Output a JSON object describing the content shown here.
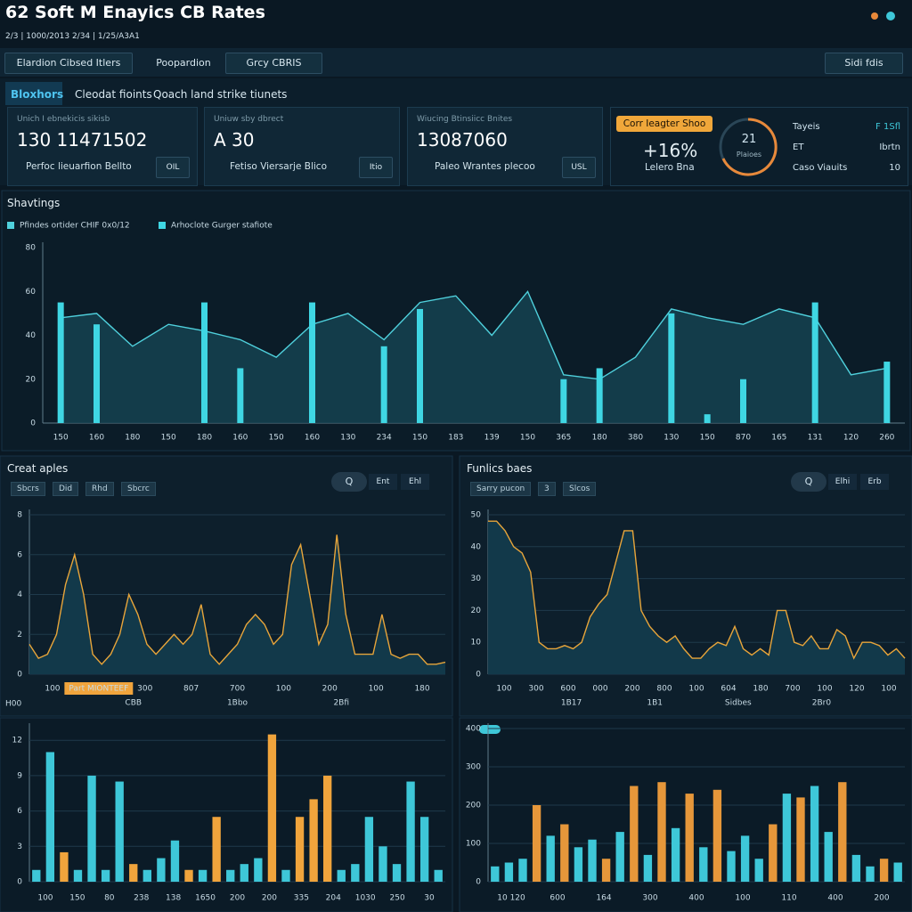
{
  "header": {
    "title": "62 Soft M Enayics CB Rates",
    "subtitle": "2/3  |  1000/2013 2/34  |  1/25/A3A1"
  },
  "toolbar": [
    "Elardion Cibsed Itlers",
    "Poopardion",
    "Grcy CBRIS",
    "Sidi fdis"
  ],
  "tabs": [
    "Bloxhors",
    "Cleodat fioints",
    "Qoach land strike tiunets"
  ],
  "cards": [
    {
      "label": "Unich I ebnekicis sikisb",
      "value": "130 11471502",
      "foot": "Perfoc lieuarfion Bellto",
      "button": "OIL"
    },
    {
      "label": "Uniuw sby dbrect",
      "value": "A 30",
      "foot": "Fetiso Viersarje Blico",
      "button": "Itio"
    },
    {
      "label": "Wiucing Btinsiicc Bnites",
      "value": "13087060",
      "foot": "Paleo Wrantes plecoo",
      "button": "USL"
    }
  ],
  "summary": {
    "badge": "Corr Ieagter Shoo",
    "change": "+16%",
    "caption": "Lelero Bna",
    "gauge_value": "21",
    "gauge_label": "Plaioes",
    "rows": [
      [
        "Tayeis",
        "F 1Sfl"
      ],
      [
        "ET",
        "Ibrtn"
      ],
      [
        "Caso Viauits",
        "10"
      ]
    ]
  },
  "section_title": "Shavtings",
  "chart_data": [
    {
      "type": "combo",
      "categories": [
        "150",
        "160",
        "180",
        "150",
        "180",
        "160",
        "150",
        "160",
        "130",
        "234",
        "150",
        "183",
        "139",
        "150",
        "365",
        "180",
        "380",
        "130",
        "150",
        "870",
        "165",
        "131",
        "120",
        "260"
      ],
      "series": [
        {
          "name": "Pfindes ortider CHIF 0x0/12",
          "type": "area",
          "color": "#4fd0dc",
          "values": [
            48,
            50,
            35,
            45,
            42,
            38,
            30,
            45,
            50,
            38,
            55,
            58,
            40,
            60,
            22,
            20,
            30,
            52,
            48,
            45,
            52,
            48,
            22,
            25
          ]
        },
        {
          "name": "Arhoclote Gurger stafiote",
          "type": "bar",
          "color": "#3fd6e3",
          "values": [
            55,
            45,
            0,
            0,
            55,
            25,
            0,
            55,
            0,
            35,
            52,
            0,
            0,
            0,
            20,
            25,
            0,
            50,
            4,
            20,
            0,
            55,
            0,
            28
          ]
        }
      ],
      "ylim": [
        0,
        80
      ],
      "yticks": [
        0,
        20,
        40,
        60,
        80
      ],
      "grid": false
    },
    {
      "type": "area",
      "title": "Creat aples",
      "filters": [
        "Sbcrs",
        "Did",
        "Rhd",
        "Sbcrc"
      ],
      "buttons": [
        "Q",
        "Ent",
        "Ehl"
      ],
      "color": "#e8a53a",
      "values": [
        1.5,
        0.8,
        1,
        2,
        4.5,
        6,
        4,
        1,
        0.5,
        1,
        2,
        4,
        3,
        1.5,
        1,
        1.5,
        2,
        1.5,
        2,
        3.5,
        1,
        0.5,
        1,
        1.5,
        2.5,
        3,
        2.5,
        1.5,
        2,
        5.5,
        6.5,
        4,
        1.5,
        2.5,
        7,
        3,
        1,
        1,
        1,
        3,
        1,
        0.8,
        1,
        1,
        0.5,
        0.5,
        0.6
      ],
      "x_labels": [
        "100",
        "Part MIONTEEF",
        "300",
        "807",
        "700",
        "100",
        "200",
        "100",
        "180"
      ],
      "highlight": 1,
      "notes": [
        "CBB",
        "1Bbo",
        "2Bfi"
      ],
      "ylim": [
        0,
        8
      ],
      "yticks": [
        0,
        2,
        4,
        6,
        8
      ],
      "grid": true
    },
    {
      "type": "area",
      "title": "Funlics baes",
      "filters": [
        "Sarry pucon",
        "3",
        "Slcos"
      ],
      "buttons": [
        "Q",
        "Elhi",
        "Erb"
      ],
      "color": "#e8a53a",
      "values": [
        48,
        48,
        45,
        40,
        38,
        32,
        10,
        8,
        8,
        9,
        8,
        10,
        18,
        22,
        25,
        35,
        45,
        45,
        20,
        15,
        12,
        10,
        12,
        8,
        5,
        5,
        8,
        10,
        9,
        15,
        8,
        6,
        8,
        6,
        20,
        20,
        10,
        9,
        12,
        8,
        8,
        14,
        12,
        5,
        10,
        10,
        9,
        6,
        8,
        5
      ],
      "x_labels": [
        "100",
        "300",
        "600",
        "000",
        "200",
        "800",
        "100",
        "604",
        "180",
        "700",
        "100",
        "120",
        "100"
      ],
      "notes": [
        "1B17",
        "1B1",
        "Sidbes",
        "2Br0"
      ],
      "ylim": [
        0,
        50
      ],
      "yticks": [
        0,
        10,
        20,
        30,
        40,
        50
      ],
      "grid": true
    },
    {
      "type": "bar",
      "title": "H00",
      "series": [
        {
          "color": "#3ec7d8",
          "values": [
            1,
            11,
            null,
            1,
            9,
            1,
            8.5,
            null,
            1,
            2,
            3.5,
            null,
            1,
            null,
            1,
            1.5,
            2,
            null,
            1,
            null,
            null,
            null,
            1,
            1.5,
            5.5,
            3,
            1.5,
            8.5,
            5.5,
            1
          ]
        },
        {
          "color": "#f0a43c",
          "values": [
            null,
            null,
            2.5,
            null,
            null,
            null,
            null,
            1.5,
            null,
            null,
            null,
            1,
            null,
            5.5,
            null,
            null,
            null,
            12.5,
            null,
            5.5,
            7,
            9,
            null,
            null,
            null,
            null,
            null,
            null,
            null,
            null
          ]
        }
      ],
      "x_labels": [
        "100",
        "150",
        "80",
        "238",
        "138",
        "1650",
        "200",
        "200",
        "335",
        "204",
        "1030",
        "250",
        "30"
      ],
      "ylim": [
        0,
        13
      ],
      "yticks": [
        0,
        3,
        6,
        9,
        12
      ],
      "grid": true
    },
    {
      "type": "bar",
      "series": [
        {
          "color": "#3ec7d8",
          "values": [
            40,
            50,
            60,
            null,
            120,
            null,
            90,
            110,
            null,
            130,
            null,
            70,
            null,
            140,
            null,
            90,
            null,
            80,
            120,
            60,
            null,
            230,
            null,
            250,
            130,
            null,
            70,
            40,
            null,
            50
          ]
        },
        {
          "color": "#e6973a",
          "values": [
            null,
            null,
            null,
            200,
            null,
            150,
            null,
            null,
            60,
            null,
            250,
            null,
            260,
            null,
            230,
            null,
            240,
            null,
            null,
            null,
            150,
            null,
            220,
            null,
            null,
            260,
            null,
            null,
            60,
            null
          ]
        }
      ],
      "x_labels": [
        "10 120",
        "600",
        "164",
        "300",
        "400",
        "100",
        "110",
        "400",
        "200"
      ],
      "ylim": [
        0,
        400
      ],
      "yticks": [
        0,
        100,
        200,
        300,
        400
      ],
      "grid": true
    }
  ]
}
